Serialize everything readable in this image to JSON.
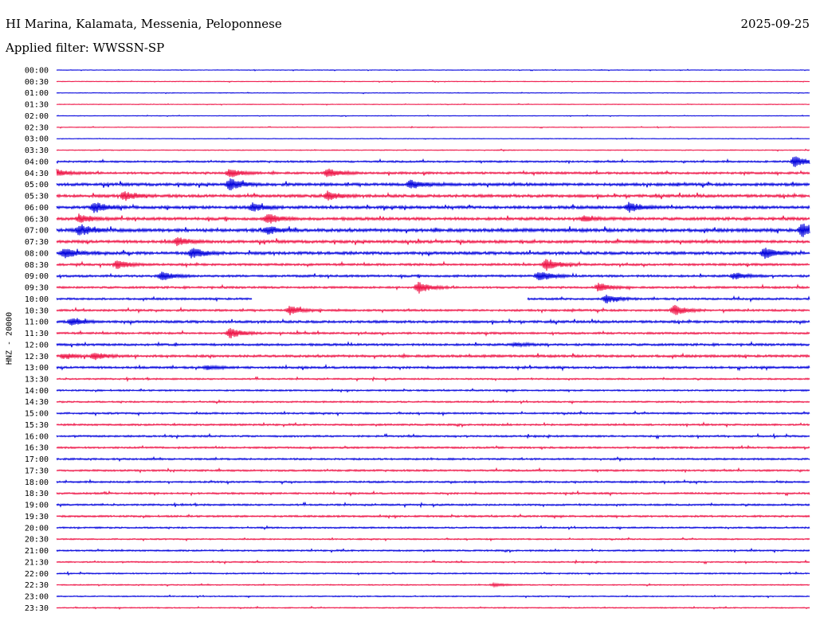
{
  "header": {
    "title": "HI Marina, Kalamata, Messenia, Peloponnese",
    "date": "2025-09-25",
    "filter": "Applied filter: WWSSN-SP"
  },
  "chart_data": {
    "type": "line",
    "title": "HI Marina, Kalamata, Messenia, Peloponnese",
    "subtitle": "Applied filter: WWSSN-SP",
    "ylabel": "HNZ - 20000",
    "grid": false,
    "colors": [
      "#0000dd",
      "#ee1144"
    ],
    "row_labels": [
      "00:00",
      "00:30",
      "01:00",
      "01:30",
      "02:00",
      "02:30",
      "03:00",
      "03:30",
      "04:00",
      "04:30",
      "05:00",
      "05:30",
      "06:00",
      "06:30",
      "07:00",
      "07:30",
      "08:00",
      "08:30",
      "09:00",
      "09:30",
      "10:00",
      "10:30",
      "11:00",
      "11:30",
      "12:00",
      "12:30",
      "13:00",
      "13:30",
      "14:00",
      "14:30",
      "15:00",
      "15:30",
      "16:00",
      "16:30",
      "17:00",
      "17:30",
      "18:00",
      "18:30",
      "19:00",
      "19:30",
      "20:00",
      "20:30",
      "21:00",
      "21:30",
      "22:00",
      "22:30",
      "23:00",
      "23:30"
    ],
    "noise_level": [
      0.3,
      0.3,
      0.3,
      0.3,
      0.3,
      0.3,
      0.3,
      0.4,
      0.8,
      1.0,
      1.3,
      1.3,
      1.3,
      1.3,
      1.5,
      1.3,
      1.3,
      1.0,
      1.0,
      0.9,
      0.9,
      0.9,
      1.1,
      0.9,
      1.0,
      1.1,
      1.0,
      0.7,
      0.7,
      0.7,
      0.8,
      0.8,
      0.8,
      0.8,
      0.8,
      0.8,
      0.8,
      0.8,
      0.8,
      0.8,
      0.7,
      0.6,
      0.7,
      0.6,
      0.6,
      0.5,
      0.5,
      0.5
    ],
    "events": [
      {
        "row": 8,
        "pos": 0.98,
        "amp": 7.5
      },
      {
        "row": 9,
        "pos": 0.0,
        "amp": 4
      },
      {
        "row": 9,
        "pos": 0.23,
        "amp": 5
      },
      {
        "row": 9,
        "pos": 0.36,
        "amp": 5
      },
      {
        "row": 10,
        "pos": 0.23,
        "amp": 7
      },
      {
        "row": 10,
        "pos": 0.47,
        "amp": 5
      },
      {
        "row": 11,
        "pos": 0.09,
        "amp": 5
      },
      {
        "row": 11,
        "pos": 0.36,
        "amp": 5
      },
      {
        "row": 12,
        "pos": 0.05,
        "amp": 6
      },
      {
        "row": 12,
        "pos": 0.26,
        "amp": 5
      },
      {
        "row": 12,
        "pos": 0.76,
        "amp": 6
      },
      {
        "row": 13,
        "pos": 0.03,
        "amp": 5
      },
      {
        "row": 13,
        "pos": 0.28,
        "amp": 6
      },
      {
        "row": 13,
        "pos": 0.7,
        "amp": 3
      },
      {
        "row": 14,
        "pos": 0.03,
        "amp": 7
      },
      {
        "row": 14,
        "pos": 0.28,
        "amp": 5
      },
      {
        "row": 14,
        "pos": 0.99,
        "amp": 8
      },
      {
        "row": 15,
        "pos": 0.16,
        "amp": 5
      },
      {
        "row": 16,
        "pos": 0.01,
        "amp": 6
      },
      {
        "row": 16,
        "pos": 0.18,
        "amp": 6
      },
      {
        "row": 16,
        "pos": 0.94,
        "amp": 6
      },
      {
        "row": 17,
        "pos": 0.08,
        "amp": 5
      },
      {
        "row": 17,
        "pos": 0.65,
        "amp": 7
      },
      {
        "row": 18,
        "pos": 0.14,
        "amp": 5
      },
      {
        "row": 18,
        "pos": 0.64,
        "amp": 6
      },
      {
        "row": 18,
        "pos": 0.9,
        "amp": 4
      },
      {
        "row": 19,
        "pos": 0.48,
        "amp": 7
      },
      {
        "row": 19,
        "pos": 0.72,
        "amp": 5
      },
      {
        "row": 20,
        "pos": 0.73,
        "amp": 5
      },
      {
        "row": 21,
        "pos": 0.31,
        "amp": 5
      },
      {
        "row": 21,
        "pos": 0.82,
        "amp": 6
      },
      {
        "row": 22,
        "pos": 0.02,
        "amp": 4
      },
      {
        "row": 23,
        "pos": 0.23,
        "amp": 6
      },
      {
        "row": 24,
        "pos": 0.61,
        "amp": 2
      },
      {
        "row": 25,
        "pos": 0.01,
        "amp": 3
      },
      {
        "row": 25,
        "pos": 0.05,
        "amp": 4
      },
      {
        "row": 26,
        "pos": 0.2,
        "amp": 2
      },
      {
        "row": 45,
        "pos": 0.58,
        "amp": 1.5
      }
    ],
    "gaps": [
      {
        "row": 20,
        "start": 0.26,
        "end": 0.625
      }
    ]
  }
}
